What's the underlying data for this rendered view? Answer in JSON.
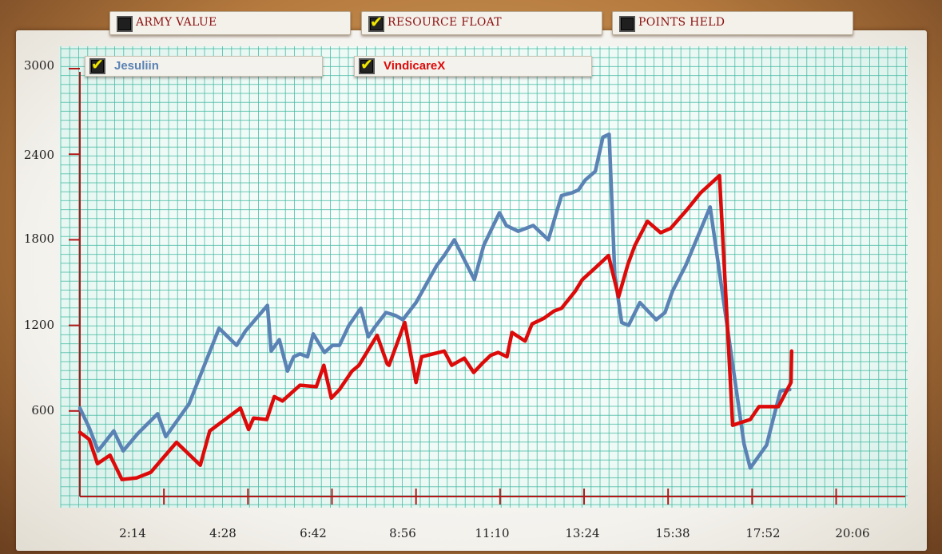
{
  "tabs": [
    {
      "label": "ARMY VALUE",
      "checked": false
    },
    {
      "label": "RESOURCE FLOAT",
      "checked": true
    },
    {
      "label": "POINTS HELD",
      "checked": false
    }
  ],
  "colors": {
    "grid": "#3fb8a0",
    "axis": "#b31818",
    "series": [
      "#5a82b4",
      "#dd0a0a"
    ]
  },
  "chart_data": {
    "type": "line",
    "title": "",
    "xlabel": "",
    "ylabel": "",
    "ylim": [
      0,
      3000
    ],
    "xlim_seconds": [
      0,
      1320
    ],
    "x_ticks": [
      "2:14",
      "4:28",
      "6:42",
      "8:56",
      "11:10",
      "13:24",
      "15:38",
      "17:52",
      "20:06"
    ],
    "y_ticks": [
      "600",
      "1200",
      "1800",
      "2400",
      "3000"
    ],
    "legend_position": "top-left",
    "grid": true,
    "series": [
      {
        "name": "Jesuliin",
        "checked": true,
        "x": [
          0,
          15,
          29,
          54,
          69,
          92,
          124,
          137,
          174,
          222,
          250,
          264,
          299,
          305,
          318,
          331,
          341,
          351,
          363,
          372,
          390,
          403,
          414,
          429,
          448,
          460,
          469,
          488,
          503,
          515,
          536,
          569,
          581,
          597,
          629,
          644,
          669,
          680,
          699,
          723,
          747,
          768,
          785,
          795,
          806,
          822,
          834,
          844,
          853,
          864,
          875,
          893,
          919,
          933,
          945,
          966,
          987,
          1005,
          1059,
          1069,
          1095,
          1117,
          1132
        ],
        "y": [
          620,
          480,
          320,
          460,
          320,
          440,
          580,
          420,
          650,
          1180,
          1060,
          1160,
          1340,
          1020,
          1100,
          880,
          980,
          1000,
          980,
          1140,
          1010,
          1060,
          1060,
          1200,
          1320,
          1120,
          1180,
          1290,
          1270,
          1240,
          1360,
          1620,
          1690,
          1800,
          1520,
          1760,
          1990,
          1900,
          1860,
          1900,
          1800,
          2110,
          2130,
          2150,
          2220,
          2280,
          2520,
          2540,
          1550,
          1220,
          1200,
          1360,
          1240,
          1290,
          1440,
          1620,
          1840,
          2030,
          370,
          200,
          360,
          740,
          750
        ]
      },
      {
        "name": "VindicareX",
        "checked": true,
        "x": [
          0,
          15,
          28,
          48,
          67,
          90,
          113,
          154,
          192,
          207,
          256,
          269,
          277,
          298,
          310,
          323,
          351,
          377,
          389,
          401,
          414,
          434,
          445,
          474,
          490,
          493,
          518,
          536,
          545,
          581,
          593,
          613,
          628,
          643,
          655,
          667,
          681,
          689,
          710,
          721,
          740,
          756,
          768,
          790,
          801,
          826,
          843,
          859,
          874,
          885,
          905,
          926,
          942,
          968,
          990,
          1020,
          1041,
          1069,
          1083,
          1114,
          1134,
          1135
        ],
        "y": [
          450,
          400,
          230,
          290,
          120,
          130,
          170,
          380,
          220,
          460,
          620,
          470,
          550,
          540,
          700,
          670,
          780,
          770,
          920,
          690,
          750,
          880,
          920,
          1130,
          930,
          920,
          1220,
          800,
          980,
          1020,
          920,
          970,
          870,
          940,
          990,
          1010,
          980,
          1150,
          1090,
          1210,
          1250,
          1300,
          1320,
          1440,
          1520,
          1620,
          1690,
          1400,
          1630,
          1760,
          1930,
          1850,
          1880,
          2010,
          2130,
          2250,
          500,
          540,
          630,
          630,
          800,
          1020
        ]
      }
    ]
  }
}
